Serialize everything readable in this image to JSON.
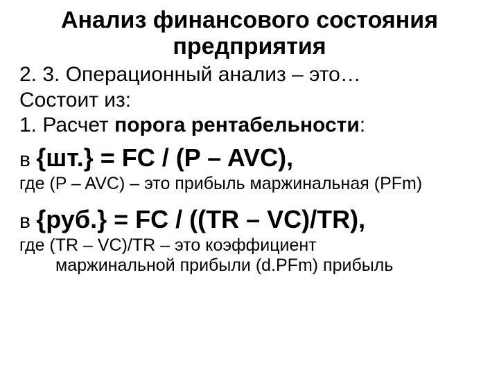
{
  "title_l1": "Анализ финансового состояния",
  "title_l2": "предприятия",
  "sec_num": "2. 3. Операционный анализ – это…",
  "consists": "Состоит из:",
  "item1_a": "1.  Расчет ",
  "item1_b": "порога рентабельности",
  "item1_c": ":",
  "f1_prefix": "в ",
  "f1_body": "{шт.} = FC / (P – AVC),",
  "n1": "где (P – AVC) – это прибыль маржинальная (PFm)",
  "f2_prefix": "в ",
  "f2_body": "{руб.} = FC / ((TR – VC)/TR),",
  "n2_a": "где (TR – VC)/TR – это коэффициент",
  "n2_b": "маржинальной прибыли (d.PFm) прибыль",
  "colors": {
    "text": "#000000",
    "bg": "#ffffff"
  },
  "fonts": {
    "family": "Arial",
    "title_pt": 34,
    "body_pt": 30,
    "formula_pt": 36,
    "note_pt": 25
  }
}
